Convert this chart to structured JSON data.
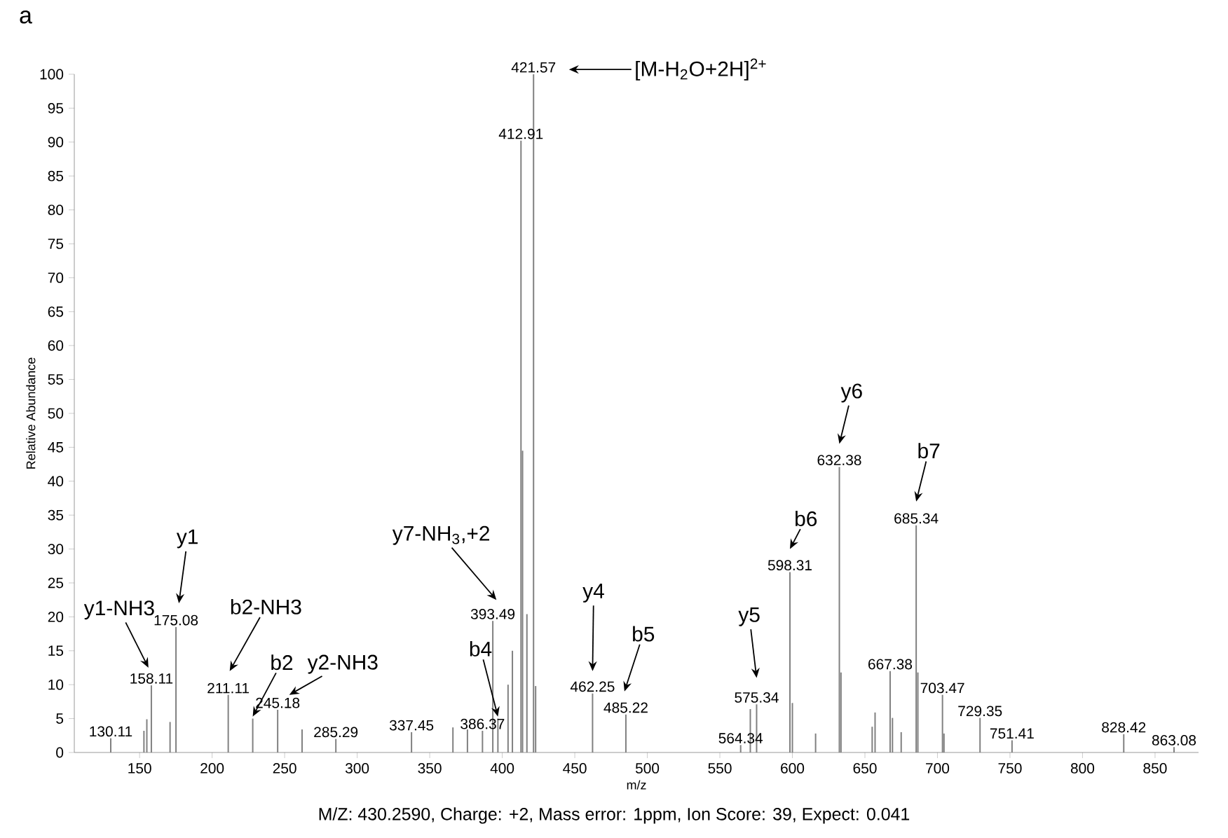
{
  "chart_data": {
    "type": "bar",
    "title": "a",
    "xlabel": "m/z",
    "ylabel": "Relative Abundance",
    "x": [
      130.11,
      153,
      155,
      158.11,
      171,
      175.08,
      211.11,
      228,
      245.18,
      262,
      285.29,
      337.45,
      366,
      376,
      386.37,
      393.49,
      397,
      404,
      407,
      412.91,
      414,
      417,
      421.57,
      423,
      462.25,
      485.22,
      564.34,
      571,
      575.34,
      598.31,
      600,
      616,
      632.38,
      633.5,
      655,
      657,
      667.38,
      669,
      675,
      685.34,
      686.5,
      703.47,
      704.5,
      729.35,
      751.41,
      828.42,
      863.08
    ],
    "values": [
      2.1,
      3.2,
      4.9,
      9.9,
      4.5,
      18.5,
      8.5,
      5,
      6.3,
      3.4,
      2.0,
      3.0,
      3.7,
      3.4,
      3.2,
      19.4,
      5,
      10,
      15,
      90.2,
      44.5,
      20.4,
      100,
      9.8,
      8.7,
      5.6,
      1.1,
      6.4,
      7.1,
      26.6,
      7.3,
      2.8,
      42.1,
      11.8,
      3.8,
      5.9,
      12.0,
      5.1,
      3,
      33.5,
      11.8,
      8.5,
      2.8,
      5.1,
      1.8,
      2.7,
      0.8
    ],
    "color": "#808080",
    "xlim": [
      105,
      880
    ],
    "ylim": [
      0,
      100
    ],
    "xticks": [
      150,
      200,
      250,
      300,
      350,
      400,
      450,
      500,
      550,
      600,
      650,
      700,
      750,
      800,
      850
    ],
    "yticks": [
      0,
      5,
      10,
      15,
      20,
      25,
      30,
      35,
      40,
      45,
      50,
      55,
      60,
      65,
      70,
      75,
      80,
      85,
      90,
      95,
      100
    ],
    "grid": false,
    "annotations": [
      {
        "text": "130.11",
        "x": 130.11,
        "y": 2.1
      },
      {
        "text": "158.11",
        "x": 158.11,
        "y": 9.9
      },
      {
        "text": "175.08",
        "x": 175.08,
        "y": 18.5
      },
      {
        "text": "211.11",
        "x": 211.11,
        "y": 8.5
      },
      {
        "text": "245.18",
        "x": 245.18,
        "y": 6.3
      },
      {
        "text": "285.29",
        "x": 285.29,
        "y": 2.0
      },
      {
        "text": "337.45",
        "x": 337.45,
        "y": 3.0
      },
      {
        "text": "386.37",
        "x": 386.37,
        "y": 3.2
      },
      {
        "text": "393.49",
        "x": 393.49,
        "y": 19.4
      },
      {
        "text": "412.91",
        "x": 412.91,
        "y": 90.2
      },
      {
        "text": "421.57",
        "x": 421.57,
        "y": 100
      },
      {
        "text": "462.25",
        "x": 462.25,
        "y": 8.7
      },
      {
        "text": "485.22",
        "x": 485.22,
        "y": 5.6
      },
      {
        "text": "564.34",
        "x": 564.34,
        "y": 1.1
      },
      {
        "text": "575.34",
        "x": 575.34,
        "y": 7.1
      },
      {
        "text": "598.31",
        "x": 598.31,
        "y": 26.6
      },
      {
        "text": "632.38",
        "x": 632.38,
        "y": 42.1
      },
      {
        "text": "667.38",
        "x": 667.38,
        "y": 12.0
      },
      {
        "text": "685.34",
        "x": 685.34,
        "y": 33.5
      },
      {
        "text": "703.47",
        "x": 703.47,
        "y": 8.5
      },
      {
        "text": "729.35",
        "x": 729.35,
        "y": 5.1
      },
      {
        "text": "751.41",
        "x": 751.41,
        "y": 1.8
      },
      {
        "text": "828.42",
        "x": 828.42,
        "y": 2.7
      },
      {
        "text": "863.08",
        "x": 863.08,
        "y": 0.8
      },
      "y1-NH3",
      "y1",
      "b2-NH3",
      {
        "text": "b2",
        "x": 228,
        "y": 5
      },
      "y2-NH3",
      "y7-NH$_{3}$,+2",
      {
        "text": "b4",
        "x": 397,
        "y": 5
      },
      "y4",
      "b5",
      "y5",
      "b6",
      "y6",
      "b7",
      "[M-H$_{2}$O+2H]$^{2+}$",
      "M/Z: 430.2590, Charge: +2, Mass error: 1ppm, Ion Score: 39, Expect: 0.041"
    ]
  }
}
